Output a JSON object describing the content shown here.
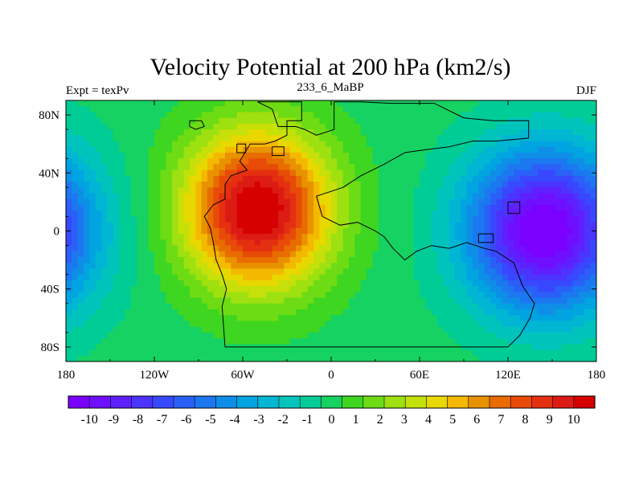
{
  "chart_data": {
    "type": "heatmap",
    "title": "Velocity Potential at 200 hPa (km2/s)",
    "left_string": "Expt = texPv",
    "center_string": "233_6_MaBP",
    "right_string": "DJF",
    "xlabel": "",
    "ylabel": "",
    "x_range": [
      -180,
      180
    ],
    "y_range": [
      -90,
      90
    ],
    "x_ticks": [
      {
        "value": -180,
        "label": "180"
      },
      {
        "value": -120,
        "label": "120W"
      },
      {
        "value": -60,
        "label": "60W"
      },
      {
        "value": 0,
        "label": "0"
      },
      {
        "value": 60,
        "label": "60E"
      },
      {
        "value": 120,
        "label": "120E"
      },
      {
        "value": 180,
        "label": "180"
      }
    ],
    "y_ticks": [
      {
        "value": 80,
        "label": "80N"
      },
      {
        "value": 40,
        "label": "40N"
      },
      {
        "value": 0,
        "label": "0"
      },
      {
        "value": -40,
        "label": "40S"
      },
      {
        "value": -80,
        "label": "80S"
      }
    ],
    "colorbar_ticks": [
      "-10",
      "-9",
      "-8",
      "-7",
      "-6",
      "-5",
      "-4",
      "-3",
      "-2",
      "-1",
      "0",
      "1",
      "2",
      "3",
      "4",
      "5",
      "6",
      "7",
      "8",
      "9",
      "10"
    ],
    "colorbar_min": -10.5,
    "colorbar_max": 10.5,
    "colorbar_colors": [
      "#7a00ff",
      "#6e10ff",
      "#5e20ff",
      "#4c34ff",
      "#3848ff",
      "#2a60f8",
      "#1c78f0",
      "#0f8ee8",
      "#00a4e0",
      "#00b6d2",
      "#00c4bc",
      "#00cc96",
      "#16d262",
      "#3ed620",
      "#6edc14",
      "#9ee010",
      "#c6e00a",
      "#e8d800",
      "#f4b800",
      "#e89200",
      "#e86c00",
      "#e84a08",
      "#e43010",
      "#dc1c14",
      "#d60000"
    ],
    "field_centers": [
      {
        "lon": -50,
        "lat": 15,
        "amp": 10.8,
        "sx": 48,
        "sy": 52
      },
      {
        "lon": 145,
        "lat": 0,
        "amp": -10.8,
        "sx": 52,
        "sy": 55
      },
      {
        "lon": -215,
        "lat": 0,
        "amp": -10.8,
        "sx": 52,
        "sy": 55
      }
    ],
    "continent_outline": [
      [
        -50,
        89
      ],
      [
        -20,
        89
      ],
      [
        -20,
        76
      ],
      [
        -30,
        76
      ],
      [
        -30,
        66
      ],
      [
        -38,
        62
      ],
      [
        -45,
        60
      ],
      [
        -55,
        60
      ],
      [
        -58,
        55
      ],
      [
        -62,
        48
      ],
      [
        -57,
        42
      ],
      [
        -68,
        38
      ],
      [
        -72,
        32
      ],
      [
        -72,
        22
      ],
      [
        -80,
        18
      ],
      [
        -86,
        10
      ],
      [
        -82,
        2
      ],
      [
        -80,
        -8
      ],
      [
        -78,
        -20
      ],
      [
        -74,
        -30
      ],
      [
        -71,
        -40
      ],
      [
        -74,
        -52
      ],
      [
        -72,
        -80
      ],
      [
        60,
        -80
      ],
      [
        120,
        -80
      ],
      [
        128,
        -72
      ],
      [
        135,
        -60
      ],
      [
        138,
        -50
      ],
      [
        130,
        -38
      ],
      [
        124,
        -22
      ],
      [
        112,
        -14
      ],
      [
        104,
        -12
      ],
      [
        92,
        -8
      ],
      [
        80,
        -12
      ],
      [
        68,
        -10
      ],
      [
        58,
        -14
      ],
      [
        50,
        -20
      ],
      [
        42,
        -12
      ],
      [
        36,
        -4
      ],
      [
        30,
        0
      ],
      [
        18,
        6
      ],
      [
        6,
        4
      ],
      [
        -6,
        10
      ],
      [
        -10,
        24
      ],
      [
        8,
        30
      ],
      [
        20,
        38
      ],
      [
        36,
        46
      ],
      [
        50,
        54
      ],
      [
        64,
        56
      ],
      [
        80,
        58
      ],
      [
        96,
        62
      ],
      [
        112,
        62
      ],
      [
        134,
        64
      ],
      [
        134,
        76
      ],
      [
        110,
        76
      ],
      [
        90,
        78
      ],
      [
        70,
        88
      ],
      [
        40,
        88
      ],
      [
        20,
        89
      ],
      [
        2,
        89
      ],
      [
        2,
        70
      ],
      [
        -10,
        66
      ],
      [
        -18,
        70
      ],
      [
        -24,
        72
      ],
      [
        -36,
        72
      ],
      [
        -40,
        84
      ],
      [
        -50,
        89
      ]
    ],
    "island_outlines": [
      [
        [
          -96,
          76
        ],
        [
          -88,
          76
        ],
        [
          -86,
          72
        ],
        [
          -92,
          70
        ],
        [
          -96,
          72
        ],
        [
          -96,
          76
        ]
      ],
      [
        [
          -64,
          60
        ],
        [
          -58,
          60
        ],
        [
          -58,
          54
        ],
        [
          -64,
          54
        ],
        [
          -64,
          60
        ]
      ],
      [
        [
          -40,
          58
        ],
        [
          -32,
          58
        ],
        [
          -32,
          52
        ],
        [
          -40,
          52
        ],
        [
          -40,
          58
        ]
      ],
      [
        [
          120,
          20
        ],
        [
          128,
          20
        ],
        [
          128,
          12
        ],
        [
          120,
          12
        ],
        [
          120,
          20
        ]
      ],
      [
        [
          100,
          -2
        ],
        [
          110,
          -2
        ],
        [
          110,
          -8
        ],
        [
          100,
          -8
        ],
        [
          100,
          -2
        ]
      ]
    ]
  }
}
